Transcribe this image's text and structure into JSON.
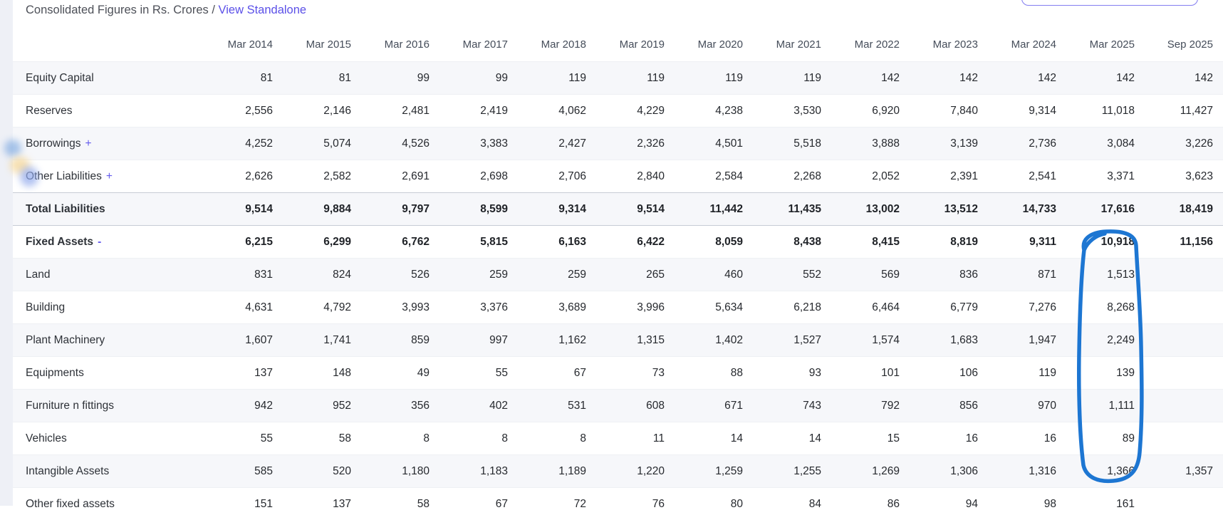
{
  "header": {
    "title_prefix": "Consolidated Figures in Rs. Crores /",
    "standalone_link": "View Standalone"
  },
  "table": {
    "columns": [
      "Mar 2014",
      "Mar 2015",
      "Mar 2016",
      "Mar 2017",
      "Mar 2018",
      "Mar 2019",
      "Mar 2020",
      "Mar 2021",
      "Mar 2022",
      "Mar 2023",
      "Mar 2024",
      "Mar 2025",
      "Sep 2025"
    ],
    "rows": [
      {
        "label": "Equity Capital",
        "expand": "",
        "bold": false,
        "divider": false,
        "values": [
          "81",
          "81",
          "99",
          "99",
          "119",
          "119",
          "119",
          "119",
          "142",
          "142",
          "142",
          "142",
          "142"
        ]
      },
      {
        "label": "Reserves",
        "expand": "",
        "bold": false,
        "divider": false,
        "values": [
          "2,556",
          "2,146",
          "2,481",
          "2,419",
          "4,062",
          "4,229",
          "4,238",
          "3,530",
          "6,920",
          "7,840",
          "9,314",
          "11,018",
          "11,427"
        ]
      },
      {
        "label": "Borrowings",
        "expand": "+",
        "bold": false,
        "divider": false,
        "values": [
          "4,252",
          "5,074",
          "4,526",
          "3,383",
          "2,427",
          "2,326",
          "4,501",
          "5,518",
          "3,888",
          "3,139",
          "2,736",
          "3,084",
          "3,226"
        ]
      },
      {
        "label": "Other Liabilities",
        "expand": "+",
        "bold": false,
        "divider": false,
        "values": [
          "2,626",
          "2,582",
          "2,691",
          "2,698",
          "2,706",
          "2,840",
          "2,584",
          "2,268",
          "2,052",
          "2,391",
          "2,541",
          "3,371",
          "3,623"
        ]
      },
      {
        "label": "Total Liabilities",
        "expand": "",
        "bold": true,
        "divider": true,
        "values": [
          "9,514",
          "9,884",
          "9,797",
          "8,599",
          "9,314",
          "9,514",
          "11,442",
          "11,435",
          "13,002",
          "13,512",
          "14,733",
          "17,616",
          "18,419"
        ]
      },
      {
        "label": "Fixed Assets",
        "expand": "-",
        "bold": true,
        "divider": true,
        "values": [
          "6,215",
          "6,299",
          "6,762",
          "5,815",
          "6,163",
          "6,422",
          "8,059",
          "8,438",
          "8,415",
          "8,819",
          "9,311",
          "10,918",
          "11,156"
        ]
      },
      {
        "label": "Land",
        "expand": "",
        "bold": false,
        "divider": false,
        "values": [
          "831",
          "824",
          "526",
          "259",
          "259",
          "265",
          "460",
          "552",
          "569",
          "836",
          "871",
          "1,513",
          ""
        ]
      },
      {
        "label": "Building",
        "expand": "",
        "bold": false,
        "divider": false,
        "values": [
          "4,631",
          "4,792",
          "3,993",
          "3,376",
          "3,689",
          "3,996",
          "5,634",
          "6,218",
          "6,464",
          "6,779",
          "7,276",
          "8,268",
          ""
        ]
      },
      {
        "label": "Plant Machinery",
        "expand": "",
        "bold": false,
        "divider": false,
        "values": [
          "1,607",
          "1,741",
          "859",
          "997",
          "1,162",
          "1,315",
          "1,402",
          "1,527",
          "1,574",
          "1,683",
          "1,947",
          "2,249",
          ""
        ]
      },
      {
        "label": "Equipments",
        "expand": "",
        "bold": false,
        "divider": false,
        "values": [
          "137",
          "148",
          "49",
          "55",
          "67",
          "73",
          "88",
          "93",
          "101",
          "106",
          "119",
          "139",
          ""
        ]
      },
      {
        "label": "Furniture n fittings",
        "expand": "",
        "bold": false,
        "divider": false,
        "values": [
          "942",
          "952",
          "356",
          "402",
          "531",
          "608",
          "671",
          "743",
          "792",
          "856",
          "970",
          "1,111",
          ""
        ]
      },
      {
        "label": "Vehicles",
        "expand": "",
        "bold": false,
        "divider": false,
        "values": [
          "55",
          "58",
          "8",
          "8",
          "8",
          "11",
          "14",
          "14",
          "15",
          "16",
          "16",
          "89",
          ""
        ]
      },
      {
        "label": "Intangible Assets",
        "expand": "",
        "bold": false,
        "divider": false,
        "values": [
          "585",
          "520",
          "1,180",
          "1,183",
          "1,189",
          "1,220",
          "1,259",
          "1,255",
          "1,269",
          "1,306",
          "1,316",
          "1,366",
          "1,357"
        ]
      },
      {
        "label": "Other fixed assets",
        "expand": "",
        "bold": false,
        "divider": false,
        "values": [
          "151",
          "137",
          "58",
          "67",
          "72",
          "76",
          "80",
          "84",
          "86",
          "94",
          "98",
          "161",
          ""
        ]
      }
    ]
  },
  "annotation": {
    "description": "hand-drawn loop around Mar 2025 fixed-asset values",
    "color": "#1d76d2"
  },
  "colors": {
    "link_accent": "#5b50e8",
    "toggle_accent": "#645bee",
    "button_border": "#837df0",
    "row_stripe": "#f6f7fa",
    "divider_border": "#c7ccd5"
  }
}
